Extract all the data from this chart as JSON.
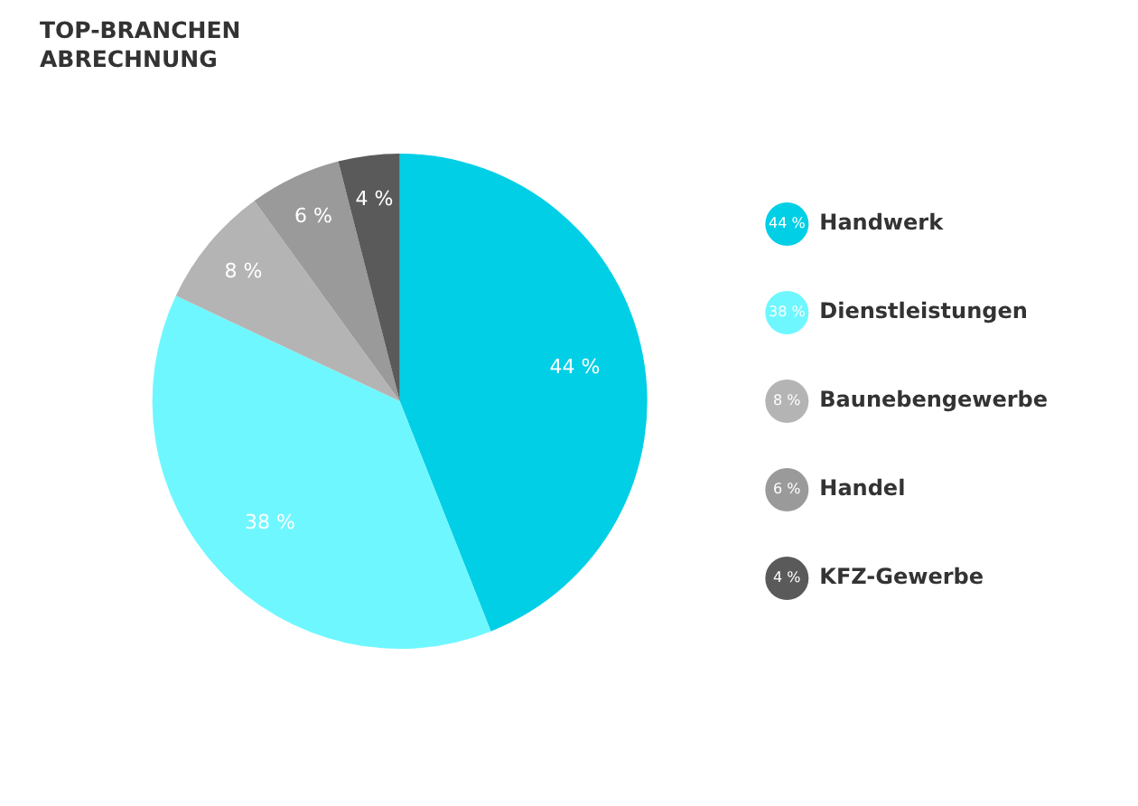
{
  "chart_data": {
    "type": "pie",
    "title": "TOP-BRANCHEN\nABRECHNUNG",
    "categories": [
      "Handwerk",
      "Dienstleistungen",
      "Baunebengewerbe",
      "Handel",
      "KFZ-Gewerbe"
    ],
    "values": [
      44,
      38,
      8,
      6,
      4
    ],
    "value_labels": [
      "44 %",
      "38 %",
      "8 %",
      "6 %",
      "4 %"
    ],
    "colors": [
      "#00cfe6",
      "#6ff7ff",
      "#b4b4b4",
      "#9a9a9a",
      "#5a5a5a"
    ],
    "legend": "right"
  }
}
